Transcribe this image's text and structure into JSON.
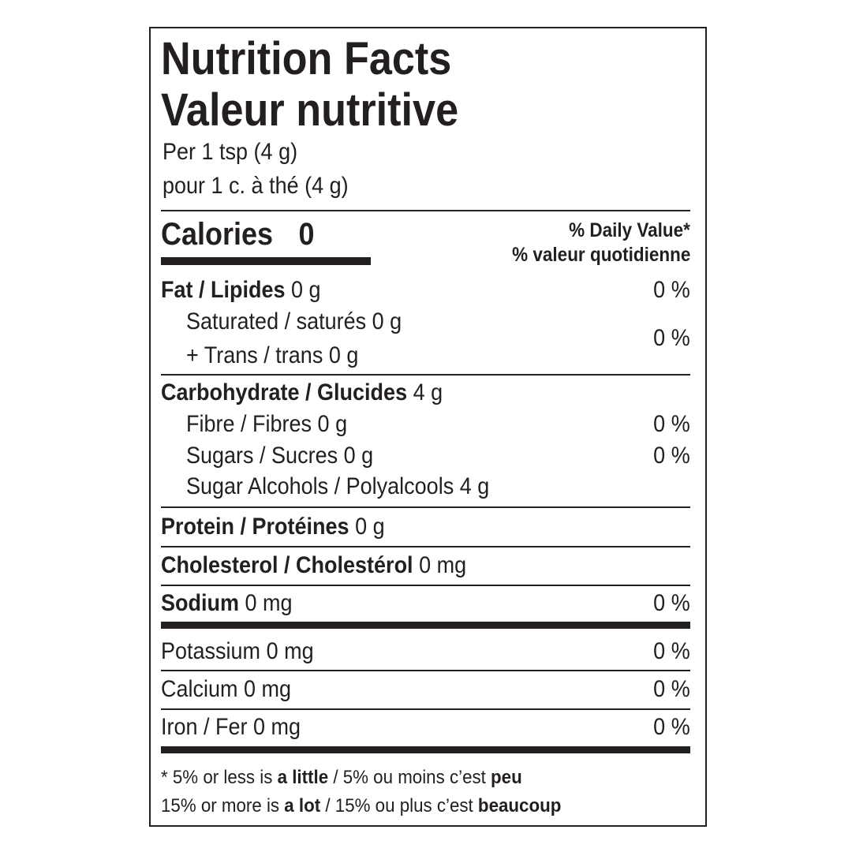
{
  "title_en": "Nutrition Facts",
  "title_fr": "Valeur nutritive",
  "serving_en": "Per 1 tsp (4 g)",
  "serving_fr": "pour 1 c. à thé (4 g)",
  "calories": {
    "label": "Calories",
    "value": "0"
  },
  "dv_header_en": "% Daily Value*",
  "dv_header_fr": "% valeur quotidienne",
  "rows": [
    {
      "label": "Fat / Lipides",
      "amount": "0 g",
      "dv": "0 %"
    },
    {
      "label": "Saturated / saturés",
      "amount": "0 g"
    },
    {
      "label": "+ Trans / trans",
      "amount": "0 g",
      "dv": "0 %"
    },
    {
      "label": "Carbohydrate / Glucides",
      "amount": "4 g"
    },
    {
      "label": "Fibre / Fibres",
      "amount": "0 g",
      "dv": "0 %"
    },
    {
      "label": "Sugars / Sucres",
      "amount": "0 g",
      "dv": "0 %"
    },
    {
      "label": "Sugar Alcohols / Polyalcools",
      "amount": "4 g"
    },
    {
      "label": "Protein / Protéines",
      "amount": "0 g"
    },
    {
      "label": "Cholesterol / Cholestérol",
      "amount": "0 mg"
    },
    {
      "label": "Sodium",
      "amount": "0 mg",
      "dv": "0 %"
    },
    {
      "label": "Potassium",
      "amount": "0 mg",
      "dv": "0 %"
    },
    {
      "label": "Calcium",
      "amount": "0 mg",
      "dv": "0 %"
    },
    {
      "label": "Iron / Fer",
      "amount": "0 mg",
      "dv": "0 %"
    }
  ],
  "footnote": {
    "l1a": "* 5% or less is ",
    "l1b": "a little",
    "l1c": " / 5% ou moins c’est ",
    "l1d": "peu",
    "l2a": "15% or more is ",
    "l2b": "a lot",
    "l2c": " / 15% ou plus c’est ",
    "l2d": "beaucoup"
  }
}
